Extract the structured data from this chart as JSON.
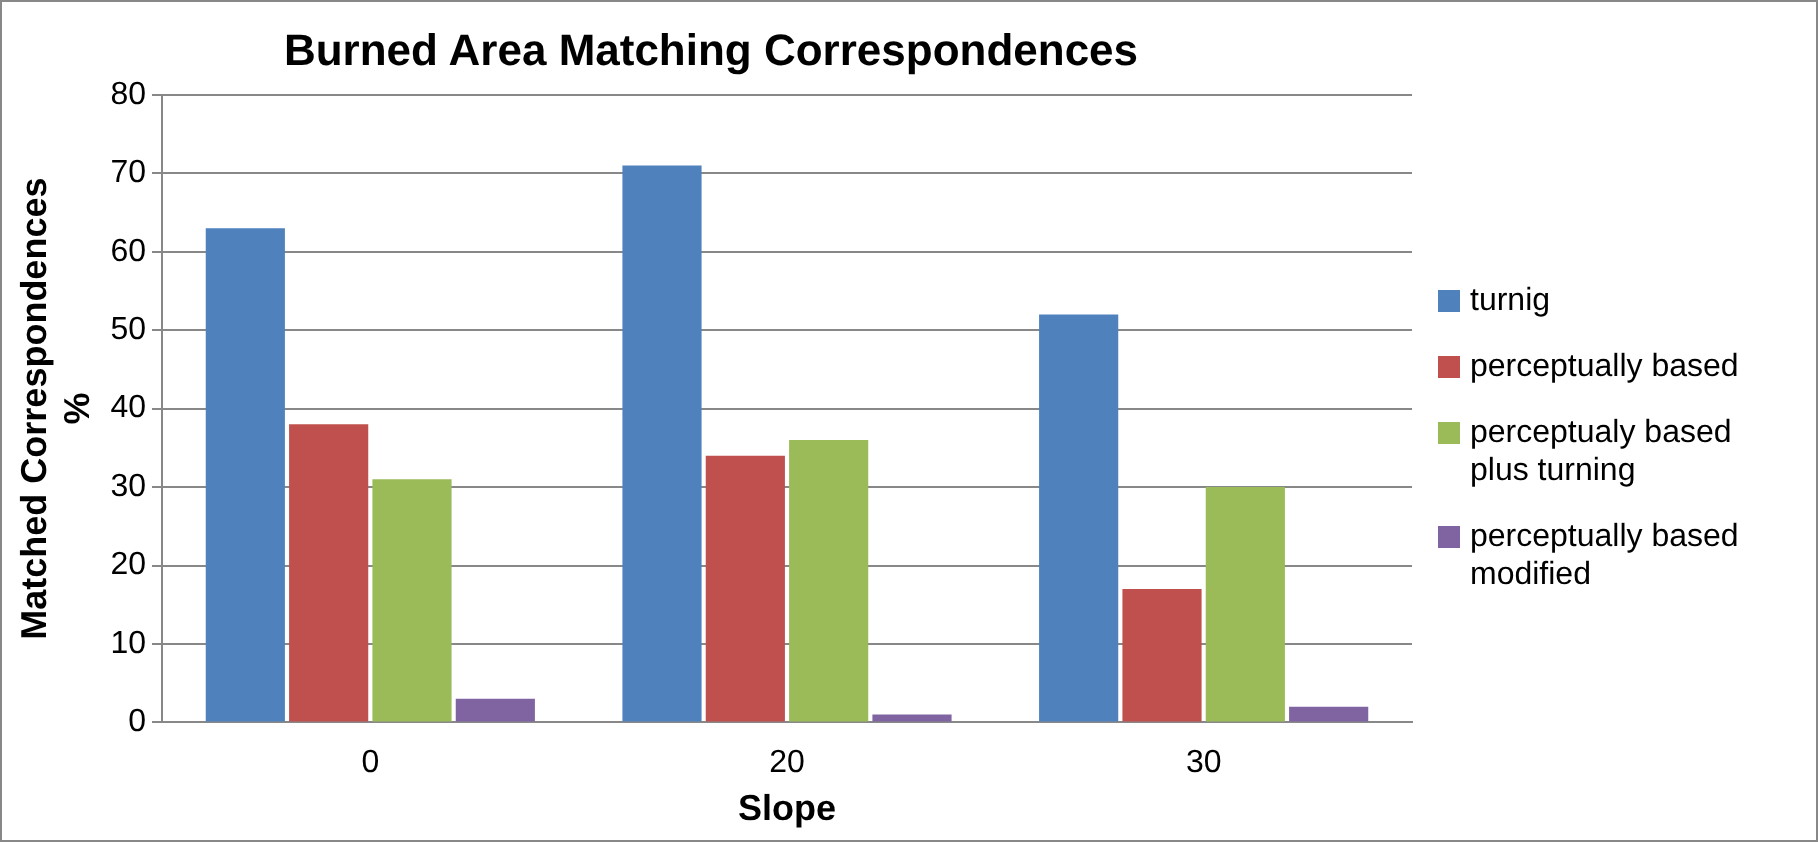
{
  "chart_data": {
    "type": "bar",
    "title": "Burned Area Matching Correspondences",
    "xlabel": "Slope",
    "ylabel": "Matched Correspondences %",
    "categories": [
      "0",
      "20",
      "30"
    ],
    "series": [
      {
        "name": "turnig",
        "color": "#4f81bd",
        "values": [
          63,
          71,
          52
        ]
      },
      {
        "name": "perceptually based",
        "color": "#c0504d",
        "values": [
          38,
          34,
          17
        ]
      },
      {
        "name": "perceptualy based plus turning",
        "color": "#9bbb59",
        "values": [
          31,
          36,
          30
        ]
      },
      {
        "name": "perceptually based modified",
        "color": "#8064a2",
        "values": [
          3,
          1,
          2
        ]
      }
    ],
    "ylim": [
      0,
      80
    ],
    "yticks": [
      0,
      10,
      20,
      30,
      40,
      50,
      60,
      70,
      80
    ],
    "grid": "y",
    "legend": "right"
  }
}
